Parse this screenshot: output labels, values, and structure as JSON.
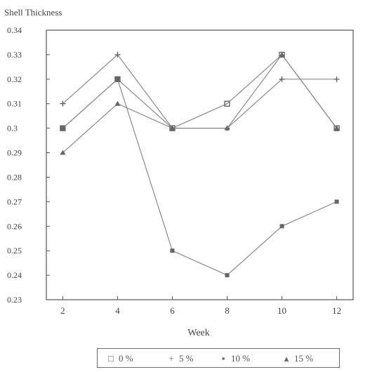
{
  "chart_data": {
    "type": "line",
    "title": "Shell Thickness",
    "xlabel": "Week",
    "ylabel": "",
    "x": [
      2,
      4,
      6,
      8,
      10,
      12
    ],
    "xlim": [
      1.4,
      12.6
    ],
    "ylim": [
      0.23,
      0.34
    ],
    "y_ticks": [
      "0.23",
      "0.24",
      "0.25",
      "0.26",
      "0.27",
      "0.28",
      "0.29",
      "0.3",
      "0.31",
      "0.32",
      "0.33",
      "0.34"
    ],
    "x_ticks": [
      "2",
      "4",
      "6",
      "8",
      "10",
      "12"
    ],
    "grid": false,
    "legend_position": "bottom",
    "series": [
      {
        "name": "0 %",
        "marker": "□",
        "values": [
          0.3,
          0.32,
          0.3,
          0.31,
          0.33,
          0.3
        ]
      },
      {
        "name": "5 %",
        "marker": "+",
        "values": [
          0.31,
          0.33,
          0.3,
          0.3,
          0.32,
          0.32
        ]
      },
      {
        "name": "10 %",
        "marker": "▪",
        "values": [
          0.3,
          0.32,
          0.25,
          0.24,
          0.26,
          0.27
        ]
      },
      {
        "name": "15 %",
        "marker": "▴",
        "values": [
          0.29,
          0.31,
          0.3,
          0.3,
          0.33,
          0.3
        ]
      }
    ],
    "colors": {
      "axis": "#555555",
      "line": "#8a8a8a",
      "marker": "#666666",
      "text": "#444444"
    }
  }
}
